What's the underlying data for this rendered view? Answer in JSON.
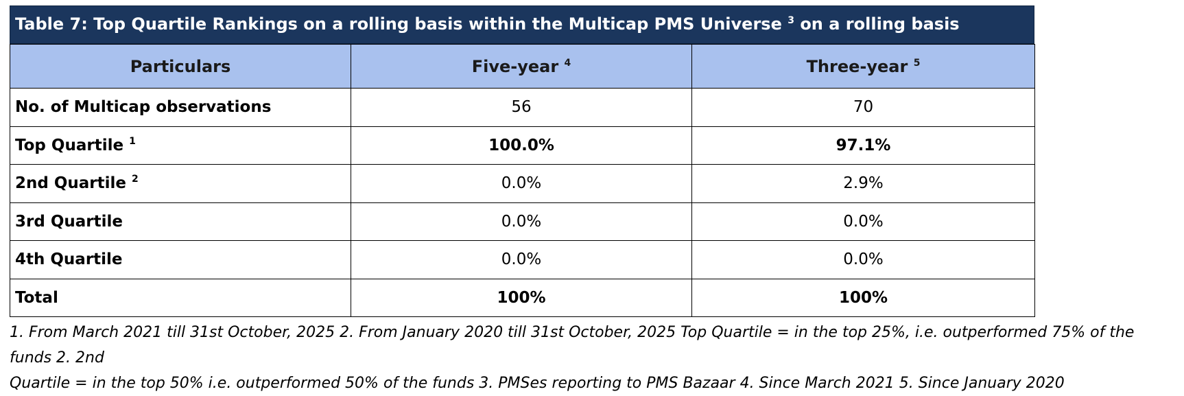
{
  "title": {
    "main": "Table 7: Top Quartile Rankings on a rolling basis within the Multicap PMS Universe",
    "sup": "3",
    "tail": "on a rolling basis"
  },
  "header": {
    "col1": "Particulars",
    "col2": "Five-year",
    "col2_sup": "4",
    "col3": "Three-year",
    "col3_sup": "5"
  },
  "rows": [
    {
      "label": "No. of Multicap observations",
      "sup": "",
      "five": "56",
      "three": "70"
    },
    {
      "label": "Top Quartile",
      "sup": "1",
      "five": "100.0%",
      "three": "97.1%"
    },
    {
      "label": "2nd Quartile",
      "sup": "2",
      "five": "0.0%",
      "three": "2.9%"
    },
    {
      "label": "3rd Quartile",
      "sup": "",
      "five": "0.0%",
      "three": "0.0%"
    },
    {
      "label": "4th Quartile",
      "sup": "",
      "five": "0.0%",
      "three": "0.0%"
    },
    {
      "label": "Total",
      "sup": "",
      "five": "100%",
      "three": "100%"
    }
  ],
  "footnote": {
    "line1": "1. From March 2021 till 31st October, 2025 2. From January 2020 till 31st October, 2025 Top Quartile = in the top 25%, i.e. outperformed 75% of the funds 2. 2nd",
    "line2": "Quartile = in the top 50% i.e. outperformed 50% of the funds 3. PMSes reporting to PMS Bazaar 4. Since March 2021 5. Since January 2020"
  }
}
